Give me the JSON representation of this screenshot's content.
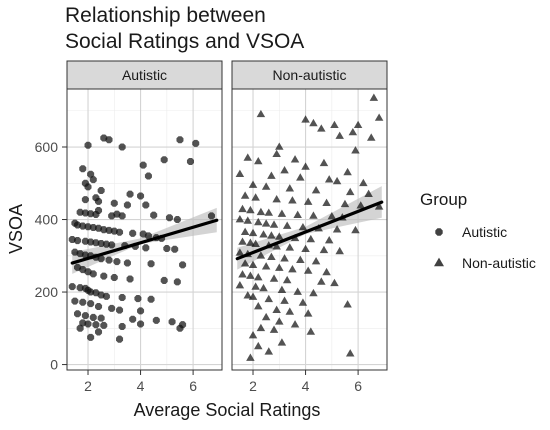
{
  "chart_data": {
    "type": "scatter",
    "title": "Relationship between\nSocial Ratings and VSOA",
    "xlabel": "Average Social Ratings",
    "ylabel": "VSOA",
    "xlim": [
      1.2,
      7.1
    ],
    "ylim": [
      -15,
      760
    ],
    "x_ticks": [
      2,
      4,
      6
    ],
    "y_ticks": [
      0,
      200,
      400,
      600
    ],
    "grid": true,
    "legend": {
      "title": "Group",
      "position": "right",
      "entries": [
        {
          "label": "Autistic",
          "marker": "octagon"
        },
        {
          "label": "Non-autistic",
          "marker": "triangle"
        }
      ]
    },
    "colors": {
      "points": "#111111",
      "fit_line": "#000000",
      "ci_band": "#bdbdbd",
      "strip": "#d9d9d9",
      "grid": "#d4d4d4",
      "grid_minor": "#ececec"
    },
    "panels": [
      {
        "name": "Autistic",
        "marker": "octagon",
        "fit": {
          "x": [
            1.4,
            6.9
          ],
          "y": [
            280,
            398
          ]
        },
        "ci_band": {
          "x": [
            1.4,
            4.0,
            6.9
          ],
          "lower": [
            250,
            333,
            365
          ],
          "upper": [
            310,
            348,
            432
          ]
        },
        "points": [
          [
            2.6,
            625
          ],
          [
            2.8,
            620
          ],
          [
            2.0,
            605
          ],
          [
            3.3,
            600
          ],
          [
            5.5,
            620
          ],
          [
            6.1,
            610
          ],
          [
            4.9,
            565
          ],
          [
            5.9,
            560
          ],
          [
            4.1,
            550
          ],
          [
            1.8,
            540
          ],
          [
            2.1,
            525
          ],
          [
            4.3,
            520
          ],
          [
            2.2,
            510
          ],
          [
            1.9,
            500
          ],
          [
            2.0,
            490
          ],
          [
            2.5,
            480
          ],
          [
            3.6,
            470
          ],
          [
            4.0,
            465
          ],
          [
            2.3,
            460
          ],
          [
            1.9,
            455
          ],
          [
            2.4,
            450
          ],
          [
            3.0,
            445
          ],
          [
            4.2,
            440
          ],
          [
            3.5,
            440
          ],
          [
            1.7,
            420
          ],
          [
            1.9,
            418
          ],
          [
            2.1,
            416
          ],
          [
            2.3,
            414
          ],
          [
            2.4,
            425
          ],
          [
            2.9,
            410
          ],
          [
            3.1,
            415
          ],
          [
            3.3,
            410
          ],
          [
            4.5,
            412
          ],
          [
            6.7,
            410
          ],
          [
            5.1,
            405
          ],
          [
            5.4,
            400
          ],
          [
            1.5,
            390
          ],
          [
            1.6,
            385
          ],
          [
            1.8,
            382
          ],
          [
            2.0,
            380
          ],
          [
            2.2,
            378
          ],
          [
            2.4,
            376
          ],
          [
            2.6,
            372
          ],
          [
            2.8,
            370
          ],
          [
            3.0,
            368
          ],
          [
            3.2,
            365
          ],
          [
            3.7,
            362
          ],
          [
            4.1,
            360
          ],
          [
            4.3,
            355
          ],
          [
            4.6,
            350
          ],
          [
            4.8,
            348
          ],
          [
            1.4,
            345
          ],
          [
            1.6,
            342
          ],
          [
            1.9,
            340
          ],
          [
            2.1,
            338
          ],
          [
            2.3,
            336
          ],
          [
            2.5,
            334
          ],
          [
            2.7,
            332
          ],
          [
            2.9,
            330
          ],
          [
            3.4,
            328
          ],
          [
            3.8,
            326
          ],
          [
            4.2,
            322
          ],
          [
            5.0,
            320
          ],
          [
            5.3,
            318
          ],
          [
            1.5,
            310
          ],
          [
            1.7,
            306
          ],
          [
            1.9,
            302
          ],
          [
            2.1,
            300
          ],
          [
            2.3,
            296
          ],
          [
            2.5,
            292
          ],
          [
            2.8,
            288
          ],
          [
            3.1,
            284
          ],
          [
            3.5,
            280
          ],
          [
            4.4,
            278
          ],
          [
            5.6,
            275
          ],
          [
            1.6,
            268
          ],
          [
            1.8,
            262
          ],
          [
            2.0,
            256
          ],
          [
            2.2,
            250
          ],
          [
            2.6,
            244
          ],
          [
            3.0,
            240
          ],
          [
            3.6,
            236
          ],
          [
            4.9,
            232
          ],
          [
            5.4,
            228
          ],
          [
            1.4,
            215
          ],
          [
            1.7,
            212
          ],
          [
            1.9,
            210
          ],
          [
            2.0,
            205
          ],
          [
            2.1,
            200
          ],
          [
            2.3,
            198
          ],
          [
            2.5,
            192
          ],
          [
            2.7,
            188
          ],
          [
            3.3,
            185
          ],
          [
            3.9,
            182
          ],
          [
            4.4,
            180
          ],
          [
            1.5,
            175
          ],
          [
            1.8,
            172
          ],
          [
            2.1,
            168
          ],
          [
            2.4,
            160
          ],
          [
            2.9,
            155
          ],
          [
            3.2,
            150
          ],
          [
            4.0,
            148
          ],
          [
            1.6,
            140
          ],
          [
            1.9,
            135
          ],
          [
            2.2,
            130
          ],
          [
            2.5,
            128
          ],
          [
            3.7,
            125
          ],
          [
            4.6,
            122
          ],
          [
            5.2,
            118
          ],
          [
            1.8,
            115
          ],
          [
            2.0,
            112
          ],
          [
            2.3,
            110
          ],
          [
            2.6,
            108
          ],
          [
            3.3,
            105
          ],
          [
            4.0,
            112
          ],
          [
            5.5,
            100
          ],
          [
            5.6,
            110
          ],
          [
            1.7,
            100
          ],
          [
            2.4,
            90
          ],
          [
            2.1,
            75
          ],
          [
            3.2,
            70
          ]
        ]
      },
      {
        "name": "Non-autistic",
        "marker": "triangle",
        "fit": {
          "x": [
            1.4,
            6.9
          ],
          "y": [
            292,
            448
          ]
        },
        "ci_band": {
          "x": [
            1.4,
            4.0,
            6.9
          ],
          "lower": [
            262,
            360,
            405
          ],
          "upper": [
            322,
            380,
            492
          ]
        },
        "points": [
          [
            6.6,
            735
          ],
          [
            2.3,
            690
          ],
          [
            6.8,
            680
          ],
          [
            4.0,
            675
          ],
          [
            4.3,
            665
          ],
          [
            5.1,
            660
          ],
          [
            4.6,
            650
          ],
          [
            6.0,
            660
          ],
          [
            5.8,
            640
          ],
          [
            5.3,
            630
          ],
          [
            6.5,
            625
          ],
          [
            3.0,
            600
          ],
          [
            5.9,
            590
          ],
          [
            2.9,
            580
          ],
          [
            1.8,
            570
          ],
          [
            3.6,
            565
          ],
          [
            2.2,
            560
          ],
          [
            4.7,
            555
          ],
          [
            4.0,
            545
          ],
          [
            3.2,
            535
          ],
          [
            5.6,
            530
          ],
          [
            1.5,
            525
          ],
          [
            2.7,
            520
          ],
          [
            3.8,
            515
          ],
          [
            4.9,
            510
          ],
          [
            5.2,
            505
          ],
          [
            6.2,
            500
          ],
          [
            2.0,
            495
          ],
          [
            2.5,
            490
          ],
          [
            3.4,
            485
          ],
          [
            4.4,
            480
          ],
          [
            5.7,
            475
          ],
          [
            6.4,
            470
          ],
          [
            1.7,
            465
          ],
          [
            2.1,
            460
          ],
          [
            2.9,
            455
          ],
          [
            3.5,
            452
          ],
          [
            4.1,
            448
          ],
          [
            4.8,
            445
          ],
          [
            5.5,
            442
          ],
          [
            6.1,
            438
          ],
          [
            6.8,
            435
          ],
          [
            1.6,
            428
          ],
          [
            1.9,
            425
          ],
          [
            2.3,
            420
          ],
          [
            2.6,
            418
          ],
          [
            3.1,
            415
          ],
          [
            3.7,
            412
          ],
          [
            4.3,
            410
          ],
          [
            5.0,
            408
          ],
          [
            5.4,
            405
          ],
          [
            1.5,
            400
          ],
          [
            1.8,
            396
          ],
          [
            2.2,
            392
          ],
          [
            2.5,
            388
          ],
          [
            2.8,
            385
          ],
          [
            3.3,
            382
          ],
          [
            3.9,
            378
          ],
          [
            4.5,
            375
          ],
          [
            5.2,
            372
          ],
          [
            5.9,
            370
          ],
          [
            1.7,
            365
          ],
          [
            2.0,
            362
          ],
          [
            2.4,
            358
          ],
          [
            2.7,
            355
          ],
          [
            3.0,
            352
          ],
          [
            3.6,
            348
          ],
          [
            4.2,
            345
          ],
          [
            4.9,
            342
          ],
          [
            1.6,
            338
          ],
          [
            1.9,
            335
          ],
          [
            2.1,
            332
          ],
          [
            2.6,
            328
          ],
          [
            2.9,
            325
          ],
          [
            3.4,
            322
          ],
          [
            4.0,
            318
          ],
          [
            4.7,
            315
          ],
          [
            5.3,
            312
          ],
          [
            1.5,
            308
          ],
          [
            1.8,
            304
          ],
          [
            2.3,
            300
          ],
          [
            2.7,
            296
          ],
          [
            3.2,
            292
          ],
          [
            3.8,
            288
          ],
          [
            4.4,
            284
          ],
          [
            1.7,
            278
          ],
          [
            2.0,
            274
          ],
          [
            2.5,
            270
          ],
          [
            3.0,
            266
          ],
          [
            3.5,
            262
          ],
          [
            4.1,
            258
          ],
          [
            4.8,
            254
          ],
          [
            1.6,
            248
          ],
          [
            1.9,
            244
          ],
          [
            2.2,
            240
          ],
          [
            2.8,
            236
          ],
          [
            3.3,
            232
          ],
          [
            4.6,
            228
          ],
          [
            5.1,
            224
          ],
          [
            1.5,
            218
          ],
          [
            2.1,
            214
          ],
          [
            2.4,
            210
          ],
          [
            3.1,
            205
          ],
          [
            3.7,
            200
          ],
          [
            4.3,
            196
          ],
          [
            1.8,
            190
          ],
          [
            2.0,
            186
          ],
          [
            2.6,
            180
          ],
          [
            3.2,
            175
          ],
          [
            3.9,
            170
          ],
          [
            5.6,
            165
          ],
          [
            2.2,
            160
          ],
          [
            2.9,
            150
          ],
          [
            3.4,
            145
          ],
          [
            4.1,
            140
          ],
          [
            2.5,
            130
          ],
          [
            3.0,
            118
          ],
          [
            3.6,
            110
          ],
          [
            2.3,
            100
          ],
          [
            2.8,
            95
          ],
          [
            4.2,
            90
          ],
          [
            2.0,
            80
          ],
          [
            3.1,
            60
          ],
          [
            2.2,
            50
          ],
          [
            2.6,
            35
          ],
          [
            1.9,
            18
          ],
          [
            5.7,
            30
          ]
        ]
      }
    ]
  }
}
